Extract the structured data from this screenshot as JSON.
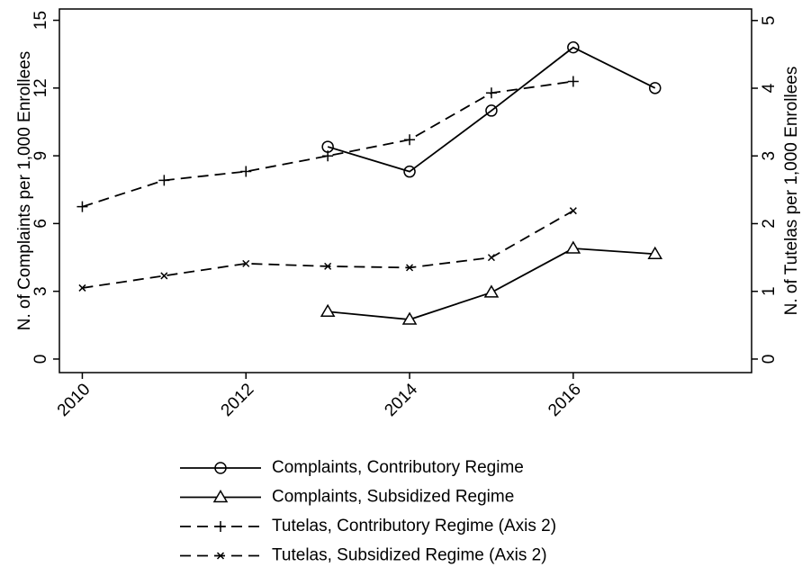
{
  "chart_data": {
    "type": "line",
    "x": [
      2010,
      2011,
      2012,
      2013,
      2014,
      2015,
      2016,
      2017
    ],
    "xlim": [
      2009.72,
      2018.18
    ],
    "xticks": [
      2010,
      2012,
      2014,
      2016
    ],
    "ylim": [
      -0.6,
      15.5
    ],
    "yticks": [
      0,
      3,
      6,
      9,
      12,
      15
    ],
    "y2lim": [
      -0.2,
      5.17
    ],
    "y2ticks": [
      0,
      1,
      2,
      3,
      4,
      5
    ],
    "ylabel": "N. of Complaints per 1,000 Enrollees",
    "y2label": "N. of Tutelas per 1,000 Enrollees",
    "series": [
      {
        "name": "Complaints, Contributory Regime",
        "color": "#000000",
        "style": "solid",
        "marker": "circle",
        "values": [
          null,
          null,
          null,
          9.4,
          8.3,
          11.0,
          13.8,
          12.0
        ]
      },
      {
        "name": "Complaints, Subsidized Regime",
        "color": "#000000",
        "style": "solid",
        "marker": "triangle",
        "values": [
          null,
          null,
          null,
          2.1,
          1.75,
          2.95,
          4.9,
          4.65
        ]
      },
      {
        "name": "Tutelas, Contributory Regime (Axis 2)",
        "color": "#000000",
        "style": "dashed",
        "marker": "plus",
        "axis": "y2",
        "values": [
          2.25,
          2.64,
          2.77,
          3.0,
          3.24,
          3.93,
          4.1,
          null
        ]
      },
      {
        "name": "Tutelas, Subsidized Regime (Axis 2)",
        "color": "#000000",
        "style": "dashed",
        "marker": "x",
        "axis": "y2",
        "values": [
          1.05,
          1.23,
          1.41,
          1.37,
          1.35,
          1.5,
          2.19,
          null
        ]
      }
    ]
  }
}
